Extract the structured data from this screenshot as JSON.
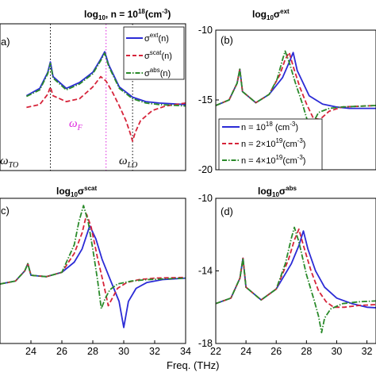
{
  "chart_data": [
    {
      "id": "a",
      "type": "line",
      "panel_label": "a)",
      "title": "log10, n = 10^18(cm^-3)",
      "title_parts": {
        "a": "log",
        "b": "10",
        "c": ", n = 10",
        "d": "18",
        "e": "(cm",
        "f": "-3",
        "g": ")"
      },
      "xlim": [
        22,
        34
      ],
      "ylim": [
        -20,
        -10
      ],
      "xticks": [],
      "yticks": [],
      "vlines": [
        {
          "x": 23.8,
          "style": "dotted",
          "color": "#000000"
        },
        {
          "x": 28.0,
          "style": "dotted",
          "color": "#dd22dd"
        },
        {
          "x": 30.0,
          "style": "dotted",
          "color": "#000000"
        }
      ],
      "annotations": [
        {
          "text": "ω",
          "sub": "F",
          "color": "#dd22dd"
        },
        {
          "text": "ω",
          "sub": "TO",
          "color": "#000000"
        },
        {
          "text": "ω",
          "sub": "LO",
          "color": "#000000"
        }
      ],
      "legend": [
        {
          "main": "σ",
          "sup": "ext",
          "tail": "(n)"
        },
        {
          "main": "σ",
          "sup": "scat",
          "tail": "(n)"
        },
        {
          "main": "σ",
          "sup": "abs",
          "tail": "(n)"
        }
      ],
      "series": [
        {
          "name": "σext(n)",
          "color": "#2b2bd6",
          "dash": "solid",
          "x": [
            22.0,
            23.0,
            23.6,
            23.8,
            24.0,
            25.0,
            26.0,
            27.0,
            27.6,
            27.9,
            28.2,
            29.0,
            30.0,
            31.0,
            32.0,
            34.0
          ],
          "y": [
            -14.9,
            -14.4,
            -13.3,
            -12.6,
            -13.6,
            -14.4,
            -14.0,
            -13.3,
            -12.4,
            -11.9,
            -12.8,
            -14.3,
            -15.0,
            -15.3,
            -15.4,
            -15.5
          ]
        },
        {
          "name": "σscat(n)",
          "color": "#d6243a",
          "dash": "dashed",
          "x": [
            22.0,
            23.0,
            23.6,
            23.8,
            24.0,
            25.0,
            26.0,
            27.0,
            27.6,
            28.0,
            28.5,
            29.0,
            29.5,
            29.8,
            30.0,
            30.2,
            30.6,
            31.5,
            32.5,
            34.0
          ],
          "y": [
            -15.7,
            -15.5,
            -14.8,
            -14.3,
            -14.9,
            -15.3,
            -15.1,
            -14.3,
            -13.6,
            -13.9,
            -14.7,
            -15.6,
            -16.6,
            -17.4,
            -18.0,
            -17.4,
            -16.6,
            -15.9,
            -15.6,
            -15.4
          ]
        },
        {
          "name": "σabs(n)",
          "color": "#2a8a2a",
          "dash": "dashdot",
          "x": [
            22.0,
            23.0,
            23.6,
            23.8,
            24.0,
            25.0,
            26.0,
            27.0,
            27.6,
            27.9,
            28.2,
            29.0,
            30.0,
            31.0,
            32.0,
            34.0
          ],
          "y": [
            -14.95,
            -14.5,
            -13.4,
            -12.7,
            -13.7,
            -14.5,
            -14.1,
            -13.4,
            -12.5,
            -12.0,
            -12.9,
            -14.4,
            -15.1,
            -15.4,
            -15.5,
            -15.6
          ]
        }
      ]
    },
    {
      "id": "b",
      "type": "line",
      "panel_label": "(b)",
      "title": "log10σext",
      "title_parts": {
        "a": "log",
        "b": "10",
        "c": "σ",
        "d": "ext"
      },
      "xlim": [
        22,
        34
      ],
      "ylim": [
        -20,
        -10
      ],
      "xticks": [],
      "yticks": [
        -10,
        -15,
        -20
      ],
      "legend": [
        {
          "main": "n = 10",
          "sup": "18",
          "tail": " (cm",
          "sup2": "-3",
          "tail2": ")"
        },
        {
          "main": "n = 2×10",
          "sup": "19",
          "tail": "(cm",
          "sup2": "-3",
          "tail2": ")"
        },
        {
          "main": "n = 4×10",
          "sup": "19",
          "tail": "(cm",
          "sup2": "-3",
          "tail2": ")"
        }
      ],
      "series": [
        {
          "name": "n = 10^18 (cm^-3)",
          "color": "#2b2bd6",
          "dash": "solid",
          "x": [
            22.0,
            23.0,
            23.6,
            23.8,
            24.0,
            25.0,
            26.0,
            27.0,
            27.5,
            27.8,
            28.1,
            29.0,
            30.0,
            31.0,
            32.0,
            34.0
          ],
          "y": [
            -15.4,
            -15.0,
            -13.8,
            -12.8,
            -14.4,
            -15.2,
            -14.6,
            -13.4,
            -12.3,
            -11.6,
            -12.9,
            -14.7,
            -15.3,
            -15.5,
            -15.6,
            -15.6
          ]
        },
        {
          "name": "n = 2×10^19(cm^-3)",
          "color": "#d6243a",
          "dash": "dashed",
          "x": [
            22.0,
            23.0,
            23.6,
            23.8,
            24.0,
            25.0,
            26.0,
            26.8,
            27.2,
            27.5,
            27.8,
            28.3,
            28.8,
            29.3,
            29.8,
            30.5,
            31.5,
            34.0
          ],
          "y": [
            -15.4,
            -15.0,
            -13.8,
            -12.8,
            -14.4,
            -15.2,
            -14.6,
            -13.2,
            -12.1,
            -11.6,
            -12.6,
            -14.1,
            -15.3,
            -16.3,
            -16.4,
            -15.8,
            -15.5,
            -15.4
          ]
        },
        {
          "name": "n = 4×10^19(cm^-3)",
          "color": "#2a8a2a",
          "dash": "dashdot",
          "x": [
            22.0,
            23.0,
            23.6,
            23.8,
            24.0,
            25.0,
            26.0,
            26.6,
            27.0,
            27.2,
            27.5,
            28.0,
            28.5,
            28.9,
            29.1,
            29.3,
            29.7,
            30.5,
            31.5,
            34.0
          ],
          "y": [
            -15.4,
            -15.0,
            -13.8,
            -12.8,
            -14.4,
            -15.2,
            -14.6,
            -13.5,
            -12.1,
            -11.5,
            -12.3,
            -13.9,
            -15.3,
            -16.6,
            -18.0,
            -16.6,
            -15.9,
            -15.6,
            -15.5,
            -15.4
          ]
        }
      ]
    },
    {
      "id": "c",
      "type": "line",
      "panel_label": "c)",
      "title": "log10σscat",
      "title_parts": {
        "a": "log",
        "b": "10",
        "c": "σ",
        "d": "scat"
      },
      "xlim": [
        22,
        34
      ],
      "ylim": [
        -20,
        -10
      ],
      "xticks": [
        24,
        26,
        28,
        30,
        32,
        34
      ],
      "yticks": [],
      "series": [
        {
          "name": "n = 10^18 (cm^-3)",
          "color": "#2b2bd6",
          "dash": "solid",
          "x": [
            22.0,
            23.0,
            23.6,
            23.8,
            24.0,
            25.0,
            26.0,
            26.8,
            27.3,
            27.8,
            28.2,
            28.6,
            29.2,
            29.7,
            30.0,
            30.3,
            30.8,
            31.5,
            32.5,
            34.0
          ],
          "y": [
            -15.9,
            -15.7,
            -15.0,
            -14.5,
            -15.3,
            -15.4,
            -15.1,
            -14.4,
            -13.5,
            -11.9,
            -12.8,
            -14.2,
            -15.8,
            -17.1,
            -18.9,
            -17.1,
            -16.2,
            -15.8,
            -15.6,
            -15.5
          ]
        },
        {
          "name": "n = 2×10^19(cm^-3)",
          "color": "#d6243a",
          "dash": "dashed",
          "x": [
            22.0,
            23.0,
            23.6,
            23.8,
            24.0,
            25.0,
            26.0,
            26.8,
            27.3,
            27.6,
            27.9,
            28.3,
            28.7,
            29.0,
            29.3,
            29.6,
            30.2,
            31.0,
            32.0,
            34.0
          ],
          "y": [
            -15.9,
            -15.7,
            -15.0,
            -14.5,
            -15.3,
            -15.4,
            -15.1,
            -13.8,
            -12.4,
            -11.1,
            -12.0,
            -14.1,
            -15.9,
            -17.4,
            -16.8,
            -16.2,
            -15.8,
            -15.6,
            -15.5,
            -15.45
          ]
        },
        {
          "name": "n = 4×10^19(cm^-3)",
          "color": "#2a8a2a",
          "dash": "dashdot",
          "x": [
            22.0,
            23.0,
            23.6,
            23.8,
            24.0,
            25.0,
            26.0,
            26.8,
            27.1,
            27.4,
            27.7,
            28.0,
            28.3,
            28.55,
            28.8,
            29.1,
            29.6,
            30.5,
            31.5,
            34.0
          ],
          "y": [
            -15.9,
            -15.7,
            -15.0,
            -14.5,
            -15.3,
            -15.4,
            -15.1,
            -13.2,
            -11.6,
            -10.5,
            -11.6,
            -13.5,
            -15.6,
            -17.6,
            -16.9,
            -16.3,
            -15.9,
            -15.7,
            -15.6,
            -15.5
          ]
        }
      ]
    },
    {
      "id": "d",
      "type": "line",
      "panel_label": "(d)",
      "title": "log10σabs",
      "title_parts": {
        "a": "log",
        "b": "10",
        "c": "σ",
        "d": "abs"
      },
      "xlim": [
        22,
        34
      ],
      "ylim": [
        -18,
        -10
      ],
      "xticks": [
        22,
        24,
        26,
        28,
        30,
        32
      ],
      "yticks": [
        -10,
        -14,
        -18
      ],
      "series": [
        {
          "name": "n = 10^18 (cm^-3)",
          "color": "#2b2bd6",
          "dash": "solid",
          "x": [
            22.0,
            23.0,
            23.6,
            23.8,
            24.0,
            25.0,
            26.0,
            27.0,
            27.5,
            27.8,
            28.1,
            28.6,
            29.2,
            30.0,
            31.0,
            32.0,
            34.0
          ],
          "y": [
            -15.8,
            -15.5,
            -14.4,
            -13.3,
            -14.9,
            -15.6,
            -15.0,
            -13.6,
            -12.6,
            -11.8,
            -12.8,
            -14.0,
            -14.9,
            -15.5,
            -15.8,
            -16.0,
            -16.1
          ]
        },
        {
          "name": "n = 2×10^19(cm^-3)",
          "color": "#d6243a",
          "dash": "dashed",
          "x": [
            22.0,
            23.0,
            23.6,
            23.8,
            24.0,
            25.0,
            26.0,
            26.8,
            27.2,
            27.5,
            27.8,
            28.3,
            28.8,
            29.3,
            29.8,
            30.5,
            31.5,
            34.0
          ],
          "y": [
            -15.8,
            -15.5,
            -14.4,
            -13.3,
            -14.9,
            -15.6,
            -15.0,
            -13.4,
            -12.3,
            -11.7,
            -12.6,
            -14.0,
            -15.1,
            -15.7,
            -16.0,
            -16.0,
            -15.9,
            -15.8
          ]
        },
        {
          "name": "n = 4×10^19(cm^-3)",
          "color": "#2a8a2a",
          "dash": "dashdot",
          "x": [
            22.0,
            23.0,
            23.6,
            23.8,
            24.0,
            25.0,
            26.0,
            26.6,
            27.0,
            27.2,
            27.5,
            28.0,
            28.5,
            28.8,
            29.0,
            29.2,
            29.6,
            30.4,
            31.5,
            34.0
          ],
          "y": [
            -15.8,
            -15.5,
            -14.4,
            -13.3,
            -14.9,
            -15.6,
            -15.0,
            -13.6,
            -12.2,
            -11.6,
            -12.4,
            -14.2,
            -15.6,
            -16.5,
            -17.4,
            -16.6,
            -16.1,
            -15.8,
            -15.7,
            -15.6
          ]
        }
      ]
    }
  ],
  "shared": {
    "xlabel": "Freq. (THz)",
    "d_last_tick": "32"
  }
}
